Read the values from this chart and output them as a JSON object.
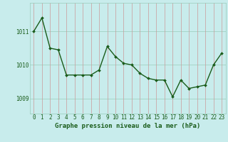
{
  "x": [
    0,
    1,
    2,
    3,
    4,
    5,
    6,
    7,
    8,
    9,
    10,
    11,
    12,
    13,
    14,
    15,
    16,
    17,
    18,
    19,
    20,
    21,
    22,
    23
  ],
  "y": [
    1011.0,
    1011.4,
    1010.5,
    1010.45,
    1009.7,
    1009.7,
    1009.7,
    1009.7,
    1009.85,
    1010.55,
    1010.25,
    1010.05,
    1010.0,
    1009.75,
    1009.6,
    1009.55,
    1009.55,
    1009.05,
    1009.55,
    1009.3,
    1009.35,
    1009.4,
    1010.0,
    1010.35
  ],
  "line_color": "#1a5c1a",
  "marker": "D",
  "marker_size": 2.0,
  "marker_color": "#1a5c1a",
  "bg_color": "#c8ecec",
  "grid_color_h": "#99ccbb",
  "grid_color_v": "#cc9999",
  "xlabel": "Graphe pression niveau de la mer (hPa)",
  "xlabel_color": "#1a5c1a",
  "xlabel_fontsize": 6.5,
  "ylabel_ticks": [
    1009,
    1010,
    1011
  ],
  "ylim": [
    1008.55,
    1011.85
  ],
  "xlim": [
    -0.5,
    23.5
  ],
  "tick_label_color": "#1a5c1a",
  "tick_label_fontsize": 5.5,
  "linewidth": 1.0
}
